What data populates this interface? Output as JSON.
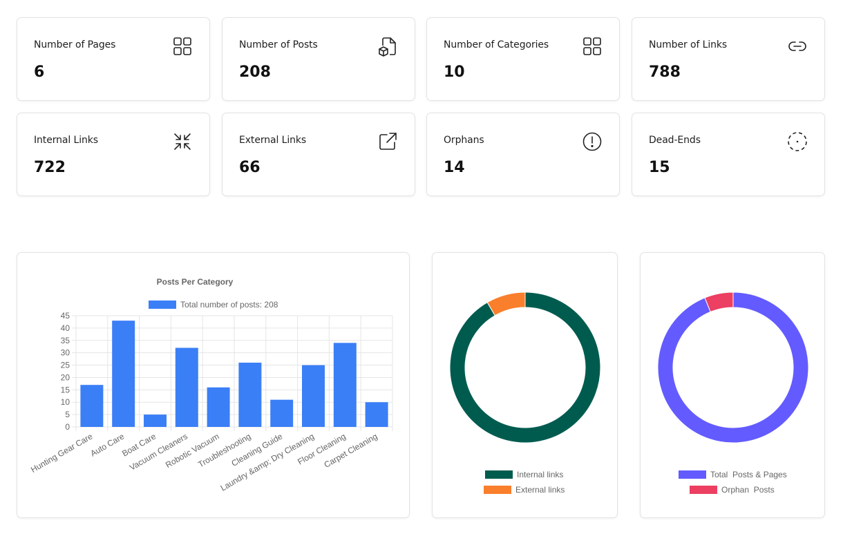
{
  "stats": [
    {
      "label": "Number of Pages",
      "value": "6",
      "icon": "grid-icon"
    },
    {
      "label": "Number of Posts",
      "value": "208",
      "icon": "document-cube-icon"
    },
    {
      "label": "Number of Categories",
      "value": "10",
      "icon": "grid-icon"
    },
    {
      "label": "Number of Links",
      "value": "788",
      "icon": "link-icon"
    },
    {
      "label": "Internal Links",
      "value": "722",
      "icon": "arrows-in-icon"
    },
    {
      "label": "External Links",
      "value": "66",
      "icon": "external-link-icon"
    },
    {
      "label": "Orphans",
      "value": "14",
      "icon": "alert-circle-icon"
    },
    {
      "label": "Dead-Ends",
      "value": "15",
      "icon": "dashed-circle-icon"
    }
  ],
  "chart_data": [
    {
      "type": "bar",
      "title": "Posts Per Category",
      "categories": [
        "Hunting Gear Care",
        "Auto Care",
        "Boat Care",
        "Vacuum Cleaners",
        "Robotic Vacuum",
        "Troubleshooting",
        "Cleaning Guide",
        "Laundry &amp; Dry Cleaning",
        "Floor Cleaning",
        "Carpet Cleaning"
      ],
      "series": [
        {
          "name": "Total number of posts: 208",
          "values": [
            17,
            43,
            5,
            32,
            16,
            26,
            11,
            25,
            34,
            10
          ],
          "color": "#3b7ff6"
        }
      ],
      "yticks": [
        0,
        5,
        10,
        15,
        20,
        25,
        30,
        35,
        40,
        45
      ],
      "ylim": [
        0,
        45
      ],
      "grid": true,
      "legend": "top"
    },
    {
      "type": "pie",
      "variant": "doughnut",
      "labels": [
        "Internal links",
        "External links"
      ],
      "values": [
        722,
        66
      ],
      "colors": [
        "#005b4f",
        "#f97f2c"
      ],
      "legend": "bottom"
    },
    {
      "type": "pie",
      "variant": "doughnut",
      "labels": [
        "Total  Posts & Pages",
        "Orphan  Posts"
      ],
      "values": [
        214,
        14
      ],
      "colors": [
        "#635bff",
        "#ec3f62"
      ],
      "legend": "bottom"
    }
  ]
}
